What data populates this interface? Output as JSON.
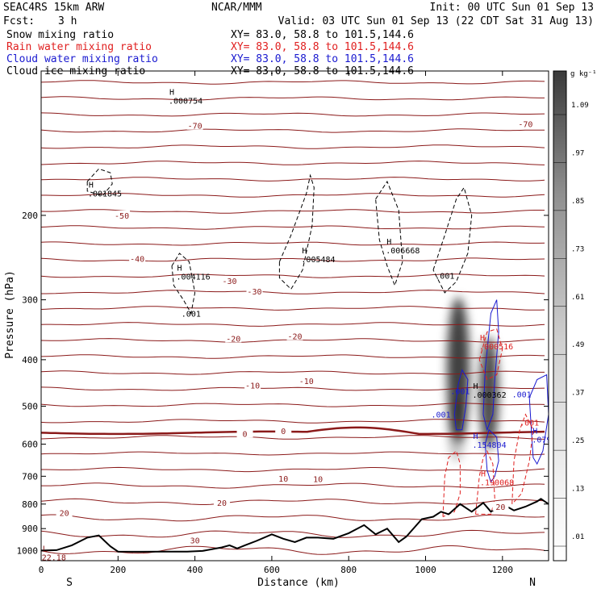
{
  "header": {
    "model": "SEAC4RS 15km ARW",
    "org": "NCAR/MMM",
    "init": "Init: 00 UTC Sun 01 Sep 13",
    "fcst_label": "Fcst:",
    "fcst_value": "3 h",
    "valid": "Valid: 03 UTC Sun 01 Sep 13 (22 CDT Sat 31 Aug 13)"
  },
  "legend": [
    {
      "name": "Snow mixing ratio",
      "xy": "XY=  83.0, 58.8 to 101.5,144.6",
      "color": "#000000"
    },
    {
      "name": "Rain water mixing ratio",
      "xy": "XY=  83.0, 58.8 to 101.5,144.6",
      "color": "#e02020"
    },
    {
      "name": "Cloud water mixing ratio",
      "xy": "XY=  83.0, 58.8 to 101.5,144.6",
      "color": "#1a1ad0"
    },
    {
      "name": "Cloud ice mixing ratio",
      "xy": "XY=  83.0, 58.8 to 101.5,144.6",
      "color": "#000000"
    }
  ],
  "colors": {
    "temperature": "#8b1a1a",
    "freezing_level": "#8b1a1a",
    "rain": "#e02020",
    "cloud_water": "#1a1ad0",
    "snow": "#000000",
    "terrain": "#000000"
  },
  "axes": {
    "ylabel": "Pressure (hPa)",
    "xlabel": "Distance (km)",
    "left_end": "S",
    "right_end": "N",
    "yticks": [
      200,
      300,
      400,
      500,
      600,
      700,
      800,
      900,
      1000
    ],
    "xticks": [
      0,
      200,
      400,
      600,
      800,
      1000,
      1200
    ],
    "ylim": [
      1050,
      100
    ],
    "xlim": [
      0,
      1320
    ]
  },
  "colorbar": {
    "unit": "g kg⁻¹",
    "labels": [
      ".01",
      ".13",
      ".25",
      ".37",
      ".49",
      ".61",
      ".73",
      ".85",
      ".97",
      "1.09"
    ]
  },
  "chart_data": {
    "type": "contour",
    "x_units": "km",
    "y_units": "hPa",
    "y_scale": "log",
    "temperature_labels": [
      {
        "x": 210,
        "p": 200,
        "text": "-50"
      },
      {
        "x": 250,
        "p": 246,
        "text": "-40"
      },
      {
        "x": 490,
        "p": 274,
        "text": "-30"
      },
      {
        "x": 555,
        "p": 288,
        "text": "-30"
      },
      {
        "x": 500,
        "p": 361,
        "text": "-20"
      },
      {
        "x": 660,
        "p": 357,
        "text": "-20"
      },
      {
        "x": 550,
        "p": 452,
        "text": "-10"
      },
      {
        "x": 690,
        "p": 443,
        "text": "-10"
      },
      {
        "x": 1260,
        "p": 129,
        "text": "-70"
      },
      {
        "x": 400,
        "p": 130,
        "text": "-70"
      },
      {
        "x": 530,
        "p": 570,
        "text": "0"
      },
      {
        "x": 630,
        "p": 563,
        "text": "0"
      },
      {
        "x": 630,
        "p": 707,
        "text": "10"
      },
      {
        "x": 720,
        "p": 709,
        "text": "10"
      },
      {
        "x": 470,
        "p": 794,
        "text": "20"
      },
      {
        "x": 60,
        "p": 834,
        "text": "20"
      },
      {
        "x": 400,
        "p": 951,
        "text": "30"
      },
      {
        "x": 1195,
        "p": 810,
        "text": "20"
      }
    ],
    "maxima": [
      {
        "x": 130,
        "p": 175,
        "label": "H",
        "value": ".001845",
        "series": "Snow mixing ratio"
      },
      {
        "x": 340,
        "p": 112,
        "label": "H",
        "value": ".000754",
        "series": "Cloud ice mixing ratio"
      },
      {
        "x": 360,
        "p": 261,
        "label": "H",
        "value": ".004116",
        "series": "Snow mixing ratio"
      },
      {
        "x": 685,
        "p": 240,
        "label": "H",
        "value": ".005484",
        "series": "Snow mixing ratio"
      },
      {
        "x": 905,
        "p": 230,
        "label": "H",
        "value": ".006668",
        "series": "Snow mixing ratio"
      },
      {
        "x": 1148,
        "p": 365,
        "label": "H",
        "value": ".000516",
        "series": "Rain water mixing ratio"
      },
      {
        "x": 1130,
        "p": 460,
        "label": "H",
        "value": ".000362",
        "series": "Snow mixing ratio"
      },
      {
        "x": 1130,
        "p": 585,
        "label": "H",
        "value": ".154804",
        "series": "Cloud water mixing ratio"
      },
      {
        "x": 1285,
        "p": 570,
        "label": "H",
        "value": ".07909",
        "series": "Cloud water mixing ratio"
      },
      {
        "x": 1150,
        "p": 700,
        "label": "H",
        "value": ".190068",
        "series": "Rain water mixing ratio"
      },
      {
        "x": 10,
        "p": 1005,
        "label": "L",
        "value": "22.18",
        "series": "Temperature"
      }
    ],
    "contour_labels": [
      {
        "x": 390,
        "p": 320,
        "value": ".001",
        "series": "Snow mixing ratio"
      },
      {
        "x": 1050,
        "p": 267,
        "value": ".001",
        "series": "Snow mixing ratio"
      },
      {
        "x": 1090,
        "p": 465,
        "value": ".001",
        "series": "Cloud water mixing ratio"
      },
      {
        "x": 1250,
        "p": 472,
        "value": ".001",
        "series": "Cloud water mixing ratio"
      },
      {
        "x": 1040,
        "p": 520,
        "value": ".001",
        "series": "Cloud water mixing ratio"
      },
      {
        "x": 1270,
        "p": 540,
        "value": ".001",
        "series": "Rain water mixing ratio"
      }
    ],
    "terrain_profile": {
      "x": [
        0,
        40,
        80,
        120,
        150,
        180,
        200,
        260,
        320,
        380,
        420,
        470,
        490,
        510,
        530,
        560,
        600,
        630,
        660,
        690,
        720,
        760,
        800,
        840,
        870,
        900,
        930,
        950,
        990,
        1020,
        1040,
        1060,
        1090,
        1120,
        1150,
        1170,
        1200,
        1230,
        1260,
        1290,
        1300,
        1320
      ],
      "p": [
        1000,
        998,
        975,
        940,
        930,
        980,
        1005,
        1006,
        1005,
        1005,
        1002,
        985,
        975,
        990,
        975,
        955,
        925,
        945,
        960,
        940,
        940,
        945,
        920,
        885,
        925,
        900,
        960,
        935,
        860,
        850,
        830,
        840,
        800,
        830,
        795,
        830,
        800,
        825,
        810,
        790,
        780,
        800
      ]
    }
  }
}
